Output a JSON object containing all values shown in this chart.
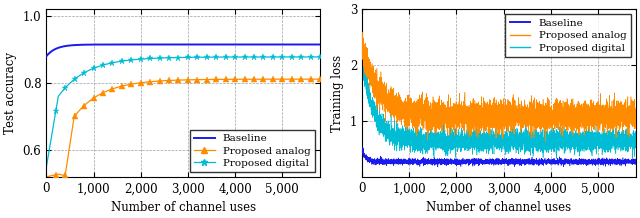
{
  "left_plot": {
    "ylabel": "Test accuracy",
    "xlabel": "Number of channel uses",
    "xlim": [
      0,
      5800
    ],
    "ylim": [
      0.52,
      1.02
    ],
    "yticks": [
      0.6,
      0.8,
      1.0
    ],
    "xticks": [
      0,
      1000,
      2000,
      3000,
      4000,
      5000
    ],
    "xticklabels": [
      "0",
      "1,000",
      "2,000",
      "3,000",
      "4,000",
      "5,000"
    ],
    "baseline_color": "#1a1aee",
    "analog_color": "#ff8c00",
    "digital_color": "#00bcd4",
    "legend_loc": "lower right"
  },
  "right_plot": {
    "ylabel": "Training loss",
    "xlabel": "Number of channel uses",
    "xlim": [
      0,
      5800
    ],
    "ylim": [
      0.0,
      3.0
    ],
    "yticks": [
      1,
      2,
      3
    ],
    "xticks": [
      0,
      1000,
      2000,
      3000,
      4000,
      5000
    ],
    "xticklabels": [
      "0",
      "1,000",
      "2,000",
      "3,000",
      "4,000",
      "5,000"
    ],
    "baseline_color": "#1a1aee",
    "analog_color": "#ff8c00",
    "digital_color": "#00bcd4",
    "legend_loc": "upper right"
  },
  "legend_labels": [
    "Baseline",
    "Proposed analog",
    "Proposed digital"
  ],
  "font_size": 8.5
}
